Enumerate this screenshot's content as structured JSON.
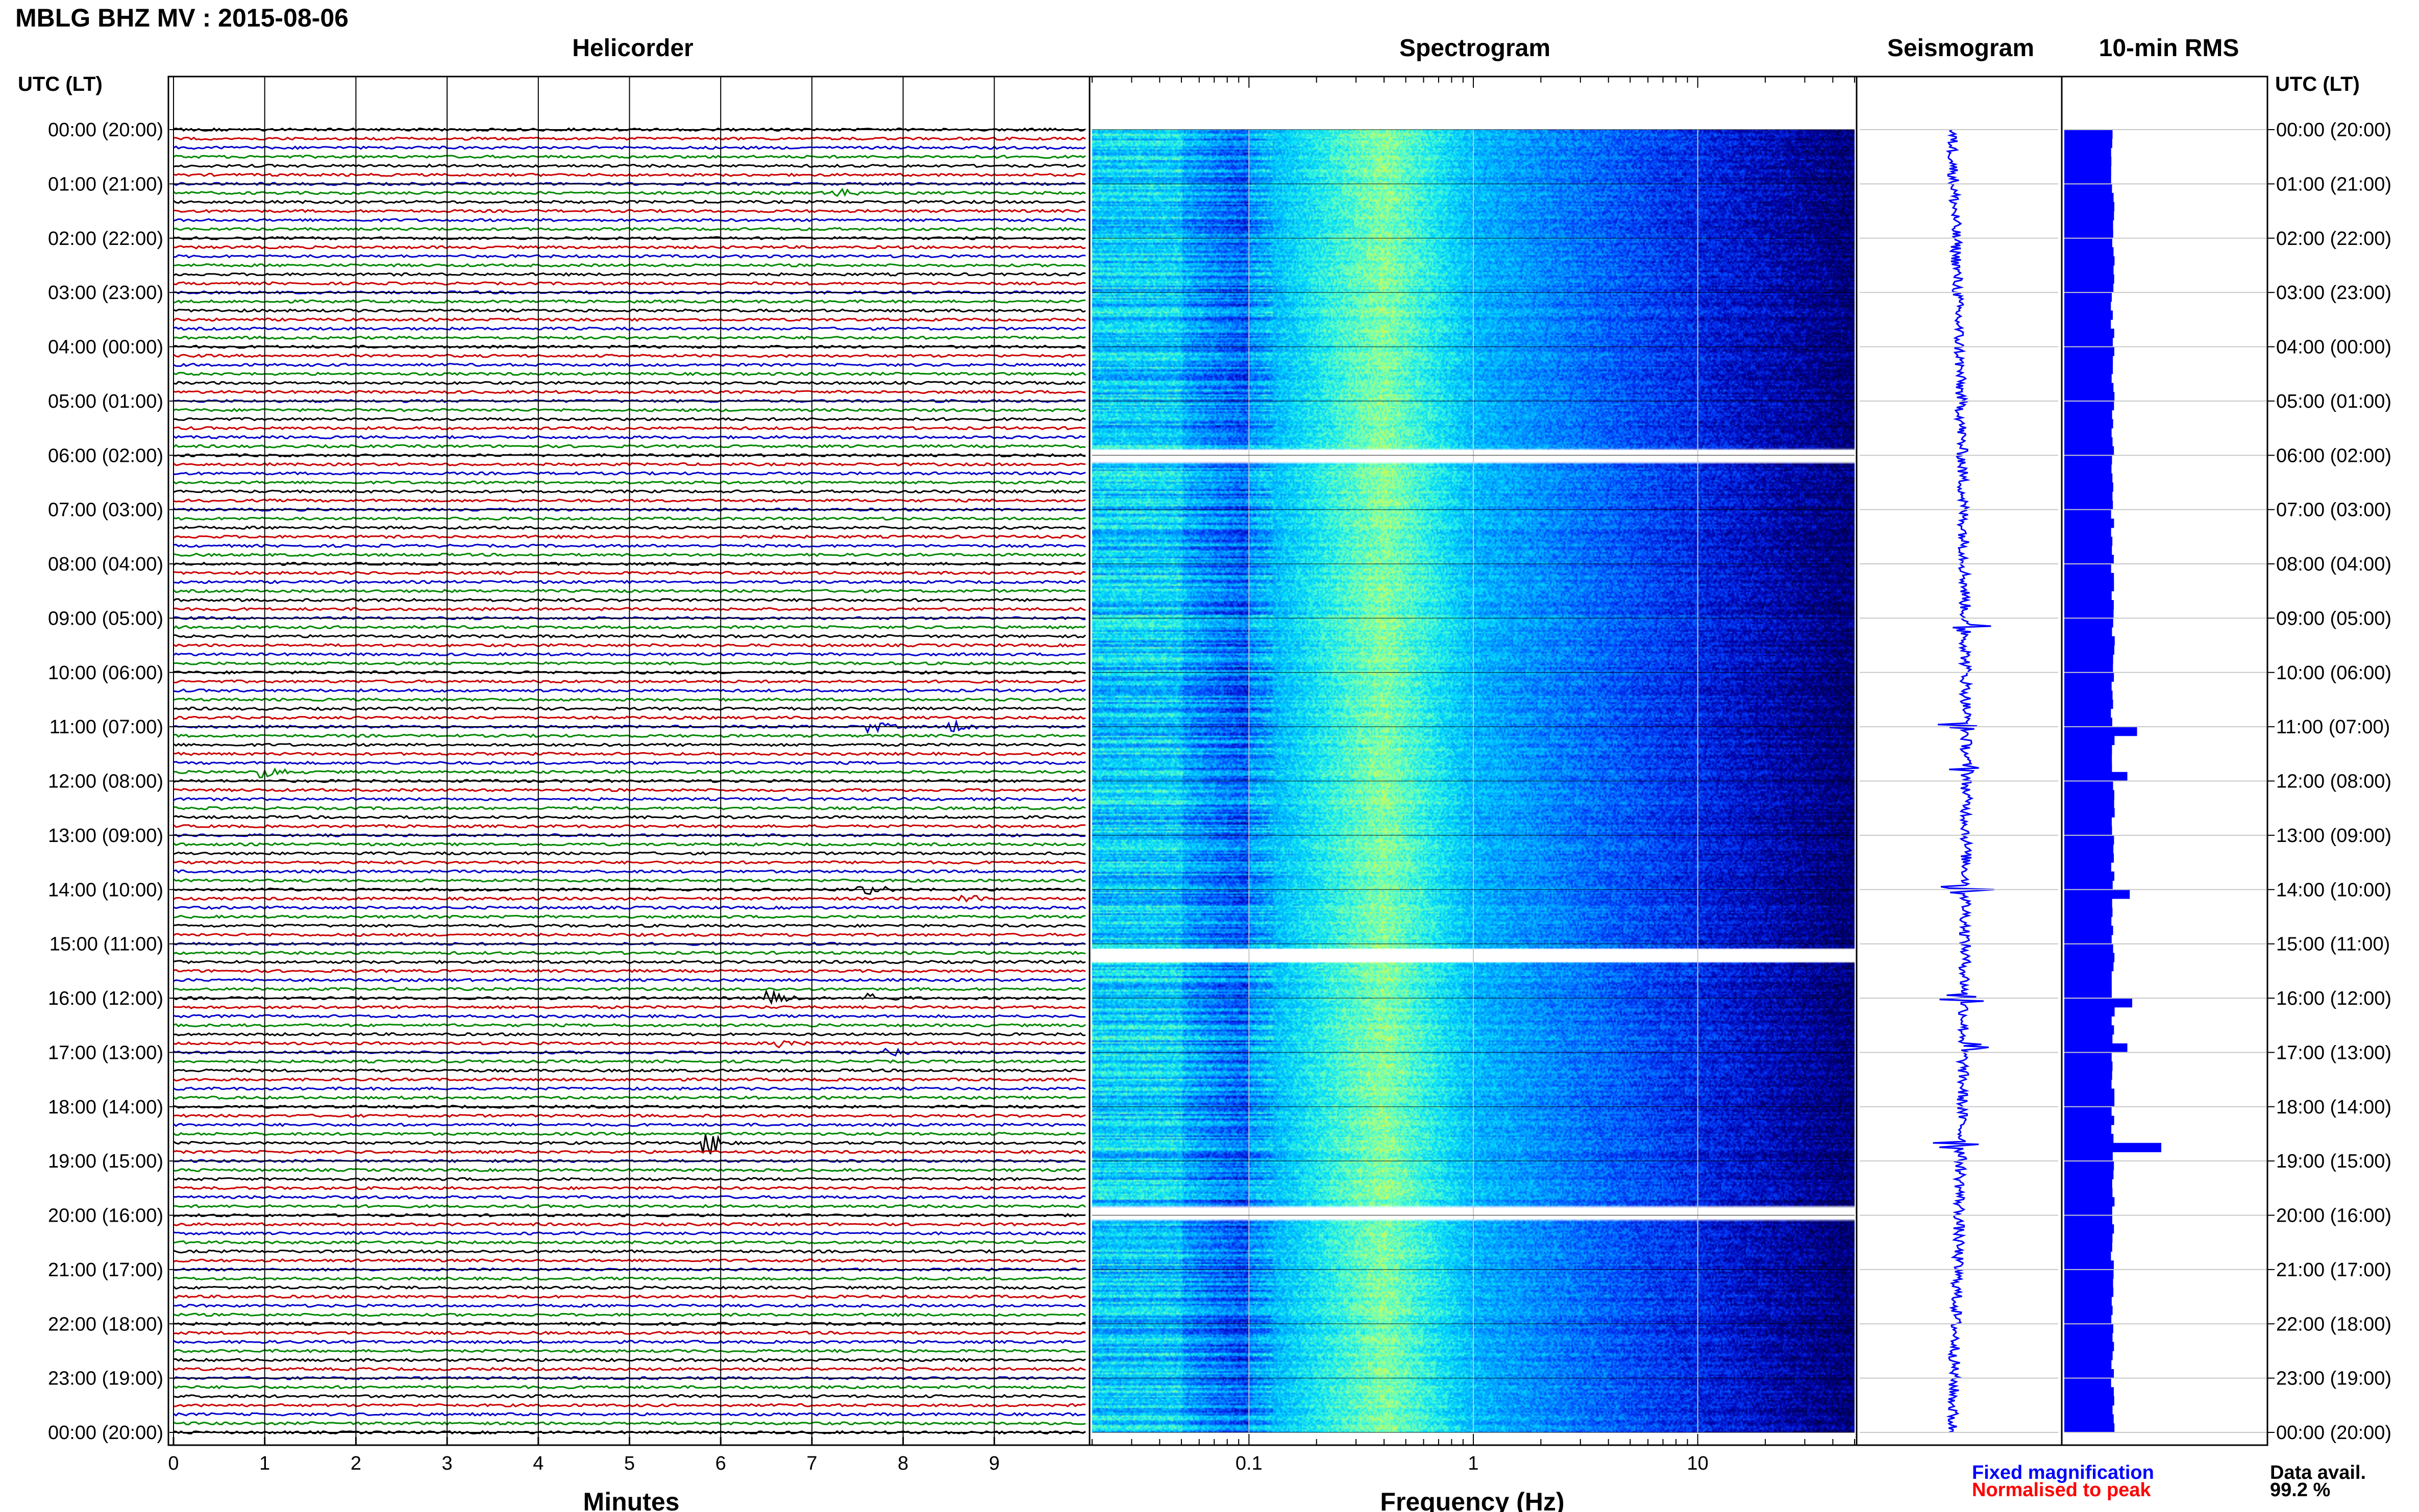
{
  "header": {
    "title": "MBLG BHZ MV : 2015-08-06"
  },
  "panels": {
    "helicorder": {
      "title": "Helicorder",
      "xlabel": "Minutes",
      "xticks": [
        "0",
        "1",
        "2",
        "3",
        "4",
        "5",
        "6",
        "7",
        "8",
        "9"
      ]
    },
    "spectrogram": {
      "title": "Spectrogram",
      "xlabel": "Frequency (Hz)",
      "xticks": [
        "0.1",
        "1",
        "10"
      ]
    },
    "seismogram": {
      "title": "Seismogram"
    },
    "rms": {
      "title": "10-min RMS"
    }
  },
  "time_axis": {
    "header": "UTC (LT)",
    "labels": [
      "00:00 (20:00)",
      "01:00 (21:00)",
      "02:00 (22:00)",
      "03:00 (23:00)",
      "04:00 (00:00)",
      "05:00 (01:00)",
      "06:00 (02:00)",
      "07:00 (03:00)",
      "08:00 (04:00)",
      "09:00 (05:00)",
      "10:00 (06:00)",
      "11:00 (07:00)",
      "12:00 (08:00)",
      "13:00 (09:00)",
      "14:00 (10:00)",
      "15:00 (11:00)",
      "16:00 (12:00)",
      "17:00 (13:00)",
      "18:00 (14:00)",
      "19:00 (15:00)",
      "20:00 (16:00)",
      "21:00 (17:00)",
      "22:00 (18:00)",
      "23:00 (19:00)",
      "00:00 (20:00)"
    ]
  },
  "legend": {
    "fixed": "Fixed magnification",
    "normalised": "Normalised to peak",
    "fixed_color": "#0000ff",
    "normalised_color": "#ff0000"
  },
  "availability": {
    "label": "Data avail.",
    "value": "99.2 %"
  },
  "chart_data": {
    "type": "heatmap",
    "title": "MBLG BHZ MV : 2015-08-06",
    "time_axis_hours": [
      0,
      24
    ],
    "helicorder": {
      "type": "line",
      "x_range_minutes": [
        0,
        10
      ],
      "lines_per_hour": 6,
      "trace_colors": [
        "#000000",
        "#cc0000",
        "#0000cc",
        "#008800"
      ],
      "events": [
        {
          "hour": 1.2,
          "minute": 7.3,
          "amp": 0.6
        },
        {
          "hour": 11.0,
          "minute": 7.7,
          "amp": 0.9
        },
        {
          "hour": 11.0,
          "minute": 8.6,
          "amp": 0.9
        },
        {
          "hour": 11.85,
          "minute": 1.0,
          "amp": 1.0
        },
        {
          "hour": 14.0,
          "minute": 7.6,
          "amp": 0.9
        },
        {
          "hour": 14.2,
          "minute": 8.7,
          "amp": 0.9
        },
        {
          "hour": 16.0,
          "minute": 6.6,
          "amp": 0.9
        },
        {
          "hour": 16.0,
          "minute": 7.7,
          "amp": 0.9
        },
        {
          "hour": 16.85,
          "minute": 6.7,
          "amp": 0.8
        },
        {
          "hour": 17.0,
          "minute": 7.9,
          "amp": 0.8
        },
        {
          "hour": 18.7,
          "minute": 5.9,
          "amp": 1.6
        }
      ]
    },
    "spectrogram": {
      "type": "heatmap",
      "x_scale": "log",
      "xlim_hz": [
        0.02,
        50
      ],
      "gaps_hours": [
        6.0,
        15.2,
        19.95
      ]
    },
    "seismogram": {
      "type": "line",
      "events_hours": [
        9.2,
        11.0,
        11.8,
        14.0,
        16.0,
        16.9,
        18.7
      ]
    },
    "rms": {
      "type": "bar",
      "bins_per_hour": 6,
      "baseline": 1.0,
      "spikes": [
        {
          "hour": 11.0,
          "value": 1.5
        },
        {
          "hour": 11.8,
          "value": 1.3
        },
        {
          "hour": 14.0,
          "value": 1.35
        },
        {
          "hour": 16.0,
          "value": 1.4
        },
        {
          "hour": 16.9,
          "value": 1.3
        },
        {
          "hour": 18.7,
          "value": 2.0
        }
      ]
    }
  }
}
